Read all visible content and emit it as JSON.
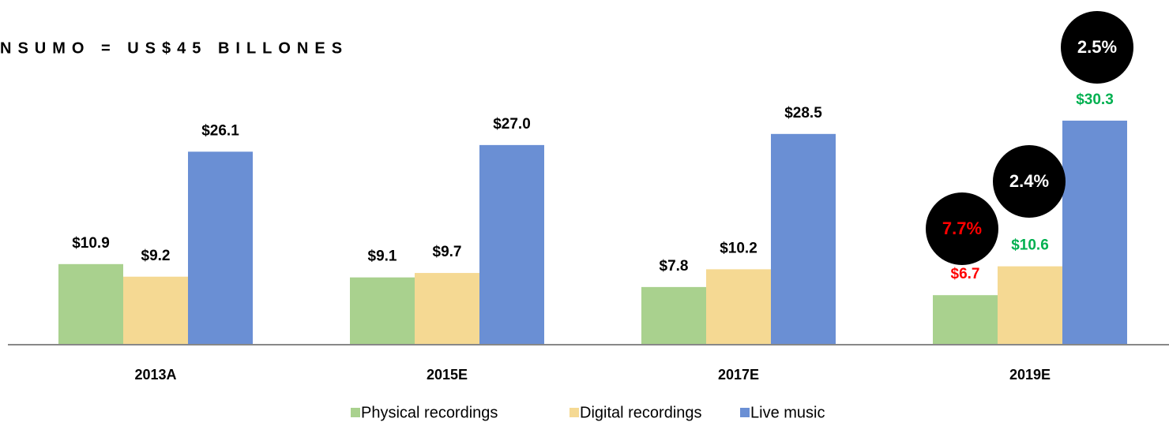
{
  "chart_data": {
    "type": "bar",
    "title": "NSUMO = US$45 BILLONES",
    "categories": [
      "2013A",
      "2015E",
      "2017E",
      "2019E"
    ],
    "ylim": [
      0,
      40
    ],
    "series": [
      {
        "name": "Physical recordings",
        "color": "#a9d18e",
        "values": [
          10.9,
          9.1,
          7.8,
          6.7
        ],
        "value_labels": [
          "$10.9",
          "$9.1",
          "$7.8",
          "$6.7"
        ],
        "label_colors": [
          "#000000",
          "#000000",
          "#000000",
          "#ff0000"
        ]
      },
      {
        "name": "Digital recordings",
        "color": "#f5d993",
        "values": [
          9.2,
          9.7,
          10.2,
          10.6
        ],
        "value_labels": [
          "$9.2",
          "$9.7",
          "$10.2",
          "$10.6"
        ],
        "label_colors": [
          "#000000",
          "#000000",
          "#000000",
          "#00b050"
        ]
      },
      {
        "name": "Live music",
        "color": "#6a8fd4",
        "values": [
          26.1,
          27.0,
          28.5,
          30.3
        ],
        "value_labels": [
          "$26.1",
          "$27.0",
          "$28.5",
          "$30.3"
        ],
        "label_colors": [
          "#000000",
          "#000000",
          "#000000",
          "#00b050"
        ]
      }
    ],
    "annotations": [
      {
        "text": "7.7%",
        "color": "#ff0000"
      },
      {
        "text": "2.4%",
        "color": "#ffffff"
      },
      {
        "text": "2.5%",
        "color": "#ffffff"
      }
    ],
    "legend": "bottom"
  }
}
